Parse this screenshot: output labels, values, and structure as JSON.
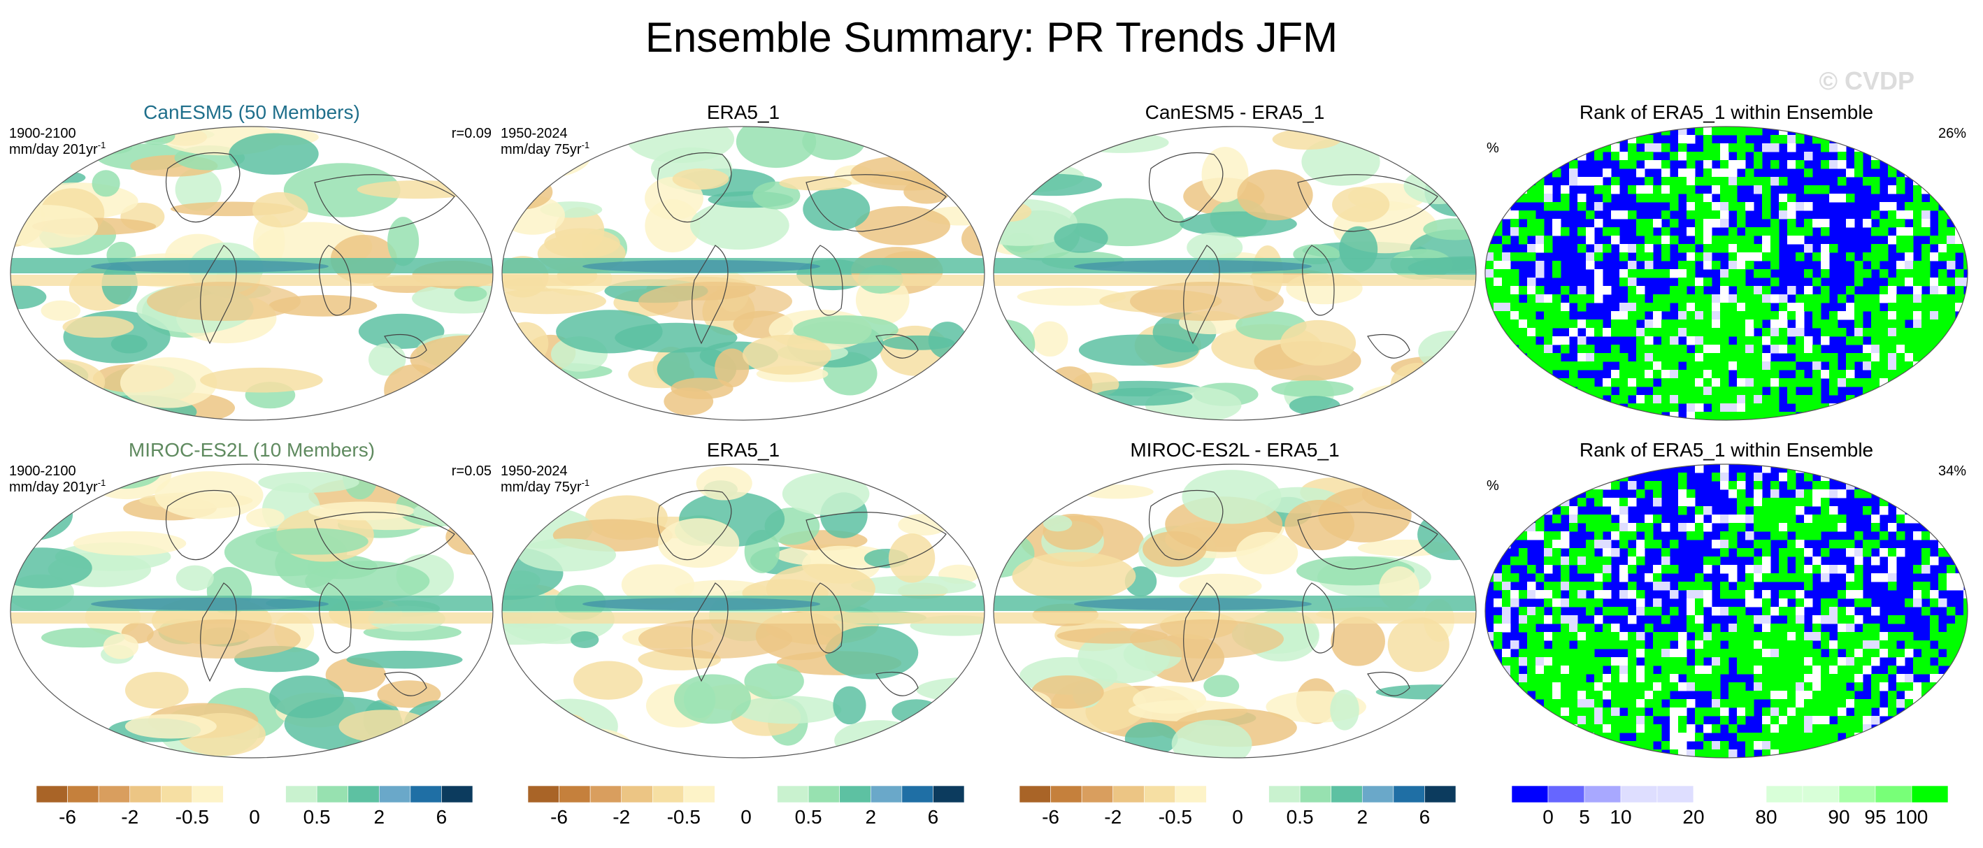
{
  "figure": {
    "title": "Ensemble Summary: PR Trends JFM",
    "watermark": "© CVDP"
  },
  "chart_data": [
    {
      "type": "heatmap",
      "title": "CanESM5 (50 Members)",
      "title_color": "#1f6f8b",
      "corner_left": [
        "1900-2100",
        "mm/day 201yr",
        "-1"
      ],
      "corner_right": "r=0.09",
      "colorbar": "diverging"
    },
    {
      "type": "heatmap",
      "title": "ERA5_1",
      "title_color": "#000000",
      "corner_left": [
        "1950-2024",
        "mm/day 75yr",
        "-1"
      ],
      "corner_right": "",
      "colorbar": "diverging"
    },
    {
      "type": "heatmap",
      "title": "CanESM5 - ERA5_1",
      "title_color": "#000000",
      "corner_left": [
        "",
        "",
        ""
      ],
      "corner_right": "",
      "colorbar": "diverging"
    },
    {
      "type": "heatmap",
      "title": "Rank of ERA5_1 within Ensemble",
      "title_color": "#000000",
      "corner_left": [
        "%",
        "",
        ""
      ],
      "corner_right": "26%",
      "colorbar": "rank"
    },
    {
      "type": "heatmap",
      "title": "MIROC-ES2L (10 Members)",
      "title_color": "#5f8a5f",
      "corner_left": [
        "1900-2100",
        "mm/day 201yr",
        "-1"
      ],
      "corner_right": "r=0.05",
      "colorbar": "diverging"
    },
    {
      "type": "heatmap",
      "title": "ERA5_1",
      "title_color": "#000000",
      "corner_left": [
        "1950-2024",
        "mm/day 75yr",
        "-1"
      ],
      "corner_right": "",
      "colorbar": "diverging"
    },
    {
      "type": "heatmap",
      "title": "MIROC-ES2L - ERA5_1",
      "title_color": "#000000",
      "corner_left": [
        "",
        "",
        ""
      ],
      "corner_right": "",
      "colorbar": "diverging"
    },
    {
      "type": "heatmap",
      "title": "Rank of ERA5_1 within Ensemble",
      "title_color": "#000000",
      "corner_left": [
        "%",
        "",
        ""
      ],
      "corner_right": "34%",
      "colorbar": "rank"
    }
  ],
  "colorbars": {
    "diverging": {
      "colors": [
        "#a96427",
        "#c5803c",
        "#d99e5e",
        "#ecc584",
        "#f6dfa3",
        "#fdf3c8",
        "#ffffff",
        "#ffffff",
        "#c9f2cf",
        "#97e1b0",
        "#5dc1a2",
        "#6aa8c9",
        "#1f6fa5",
        "#0c3b5e"
      ],
      "labels": [
        "-6",
        "-2",
        "-0.5",
        "0",
        "0.5",
        "2",
        "6"
      ],
      "label_bounds": [
        1,
        3,
        5,
        7,
        9,
        11,
        13
      ]
    },
    "rank": {
      "colors": [
        "#0000ff",
        "#6666ff",
        "#a8a8ff",
        "#dedeff",
        "#dedeff",
        "#ffffff",
        "#ffffff",
        "#d8ffd8",
        "#d8ffd8",
        "#a8ffa8",
        "#78ff78",
        "#00ff00"
      ],
      "labels": [
        "0",
        "5",
        "10",
        "20",
        "80",
        "90",
        "95",
        "100"
      ],
      "label_bounds": [
        1,
        2,
        3,
        5,
        7,
        9,
        10,
        11
      ]
    }
  }
}
